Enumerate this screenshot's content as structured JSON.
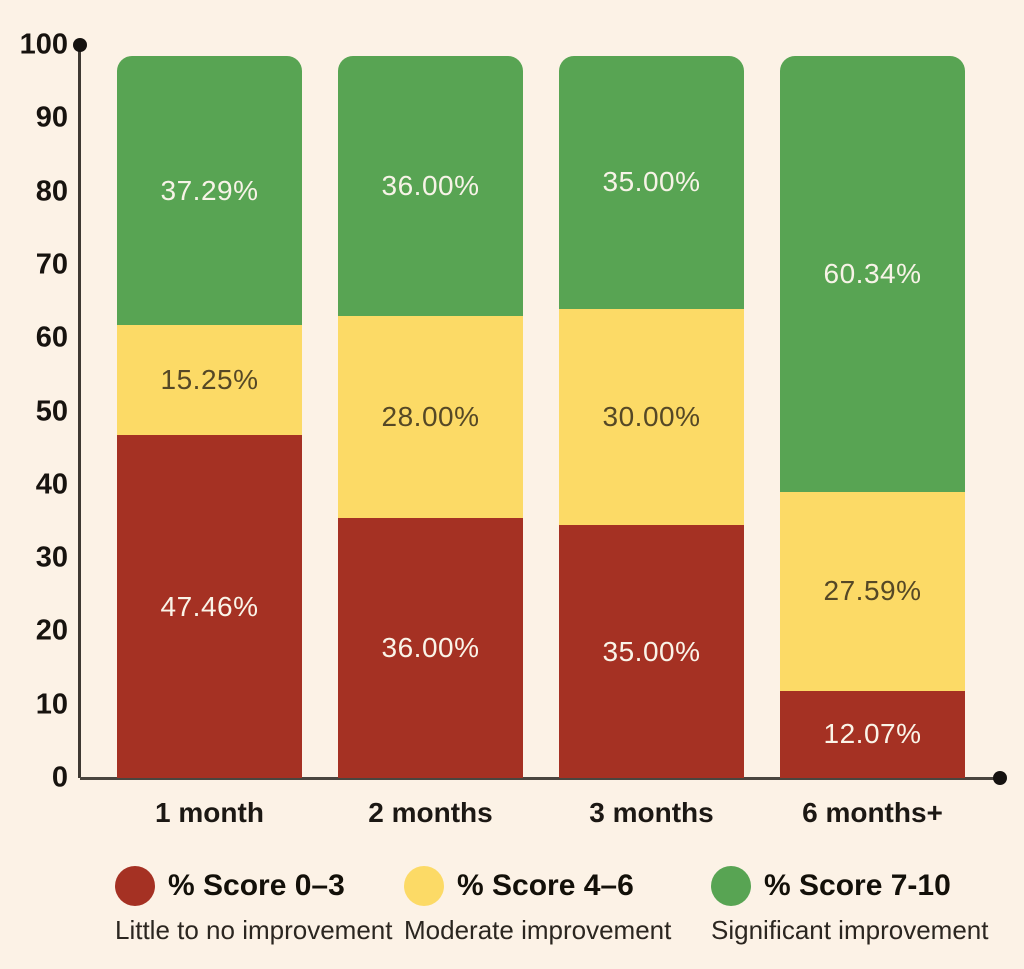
{
  "colors": {
    "background": "#FCF2E6",
    "axis_line": "#3E3933",
    "axis_dot": "#151210",
    "tick_text": "#17130F",
    "red": "#A53123",
    "yellow": "#FCDA66",
    "green": "#58A453",
    "label_on_dark": "#FAF4E8",
    "label_on_yellow": "#554826"
  },
  "chart_data": {
    "type": "bar",
    "stacked": true,
    "title": "",
    "xlabel": "",
    "ylabel": "",
    "ylim": [
      0,
      100
    ],
    "grid": false,
    "legend_position": "bottom",
    "categories": [
      "1 month",
      "2 months",
      "3 months",
      "6 months+"
    ],
    "yticks": [
      0,
      10,
      20,
      30,
      40,
      50,
      60,
      70,
      80,
      90,
      100
    ],
    "series": [
      {
        "name": "% Score 0–3",
        "description": "Little to no improvement",
        "color": "#A53123",
        "text_color": "#FAF4E8",
        "values": [
          47.46,
          36.0,
          35.0,
          12.07
        ],
        "labels": [
          "47.46%",
          "36.00%",
          "35.00%",
          "12.07%"
        ]
      },
      {
        "name": "% Score 4–6",
        "description": "Moderate improvement",
        "color": "#FCDA66",
        "text_color": "#554826",
        "values": [
          15.25,
          28.0,
          30.0,
          27.59
        ],
        "labels": [
          "15.25%",
          "28.00%",
          "30.00%",
          "27.59%"
        ]
      },
      {
        "name": "% Score 7-10",
        "description": "Significant improvement",
        "color": "#58A453",
        "text_color": "#F7F3E7",
        "values": [
          37.29,
          36.0,
          35.0,
          60.34
        ],
        "labels": [
          "37.29%",
          "36.00%",
          "35.00%",
          "60.34%"
        ]
      }
    ]
  }
}
